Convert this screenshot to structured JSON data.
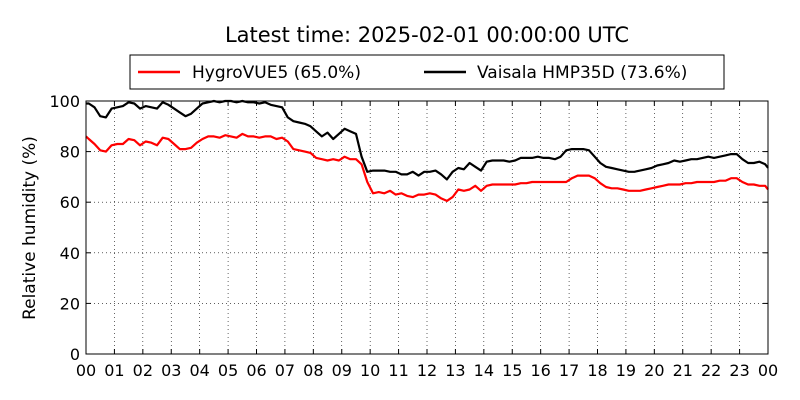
{
  "chart_data": {
    "type": "line",
    "title": "Latest time: 2025-02-01 00:00:00 UTC",
    "xlabel": "",
    "ylabel": "Relative humidity (%)",
    "ylim": [
      0,
      100
    ],
    "xlim": [
      0,
      24
    ],
    "yticks": [
      0,
      20,
      40,
      60,
      80,
      100
    ],
    "xticks": [
      "00",
      "01",
      "02",
      "03",
      "04",
      "05",
      "06",
      "07",
      "08",
      "09",
      "10",
      "11",
      "12",
      "13",
      "14",
      "15",
      "16",
      "17",
      "18",
      "19",
      "20",
      "21",
      "22",
      "23",
      "00"
    ],
    "grid": true,
    "legend": "top-center",
    "series": [
      {
        "name": "HygroVUE5 (65.0%)",
        "color": "#ff0000",
        "x": [
          0,
          0.1,
          0.3,
          0.5,
          0.7,
          0.9,
          1.1,
          1.3,
          1.5,
          1.7,
          1.9,
          2.1,
          2.3,
          2.5,
          2.7,
          2.9,
          3.1,
          3.3,
          3.5,
          3.7,
          3.9,
          4.1,
          4.3,
          4.5,
          4.7,
          4.9,
          5.1,
          5.3,
          5.5,
          5.7,
          5.9,
          6.1,
          6.3,
          6.5,
          6.7,
          6.9,
          7.1,
          7.3,
          7.5,
          7.7,
          7.9,
          8.1,
          8.3,
          8.5,
          8.7,
          8.9,
          9.1,
          9.3,
          9.5,
          9.7,
          9.9,
          10.1,
          10.3,
          10.5,
          10.7,
          10.9,
          11.1,
          11.3,
          11.5,
          11.7,
          11.9,
          12.1,
          12.3,
          12.5,
          12.7,
          12.9,
          13.1,
          13.3,
          13.5,
          13.7,
          13.9,
          14.1,
          14.3,
          14.5,
          14.7,
          14.9,
          15.1,
          15.3,
          15.5,
          15.7,
          15.9,
          16.1,
          16.3,
          16.5,
          16.7,
          16.9,
          17.1,
          17.3,
          17.5,
          17.7,
          17.9,
          18.1,
          18.3,
          18.5,
          18.7,
          18.9,
          19.1,
          19.3,
          19.5,
          19.7,
          19.9,
          20.1,
          20.3,
          20.5,
          20.7,
          20.9,
          21.1,
          21.3,
          21.5,
          21.7,
          21.9,
          22.1,
          22.3,
          22.5,
          22.7,
          22.9,
          23.1,
          23.3,
          23.5,
          23.7,
          23.9,
          24
        ],
        "values": [
          86,
          85,
          83,
          80.5,
          80,
          82.5,
          83,
          83,
          85,
          84.5,
          82.5,
          84,
          83.5,
          82.5,
          85.5,
          85,
          83,
          81,
          81,
          81.5,
          83.5,
          85,
          86,
          86,
          85.5,
          86.5,
          86,
          85.5,
          87,
          86,
          86,
          85.5,
          86,
          86,
          85,
          85.5,
          84,
          81,
          80.5,
          80,
          79.5,
          77.5,
          77,
          76.5,
          77,
          76.5,
          78,
          77,
          77,
          75,
          68,
          63.5,
          64,
          63.5,
          64.5,
          63,
          63.5,
          62.5,
          62,
          63,
          63,
          63.5,
          63,
          61.5,
          60.5,
          62,
          65,
          64.5,
          65,
          66.5,
          64.5,
          66.5,
          67,
          67,
          67,
          67,
          67,
          67.5,
          67.5,
          68,
          68,
          68,
          68,
          68,
          68,
          68,
          69.5,
          70.5,
          70.5,
          70.5,
          69.5,
          67.5,
          66,
          65.5,
          65.5,
          65,
          64.5,
          64.5,
          64.5,
          65,
          65.5,
          66,
          66.5,
          67,
          67,
          67,
          67.5,
          67.5,
          68,
          68,
          68,
          68,
          68.5,
          68.5,
          69.5,
          69.5,
          68,
          67,
          67,
          66.5,
          66.5,
          65
        ]
      },
      {
        "name": "Vaisala HMP35D (73.6%)",
        "color": "#000000",
        "x": [
          0,
          0.1,
          0.3,
          0.5,
          0.7,
          0.9,
          1.1,
          1.3,
          1.5,
          1.7,
          1.9,
          2.1,
          2.3,
          2.5,
          2.7,
          2.9,
          3.1,
          3.3,
          3.5,
          3.7,
          3.9,
          4.1,
          4.3,
          4.5,
          4.7,
          4.9,
          5.1,
          5.3,
          5.5,
          5.7,
          5.9,
          6.1,
          6.3,
          6.5,
          6.7,
          6.9,
          7.1,
          7.3,
          7.5,
          7.7,
          7.9,
          8.1,
          8.3,
          8.5,
          8.7,
          8.9,
          9.1,
          9.3,
          9.5,
          9.7,
          9.9,
          10.1,
          10.3,
          10.5,
          10.7,
          10.9,
          11.1,
          11.3,
          11.5,
          11.7,
          11.9,
          12.1,
          12.3,
          12.5,
          12.7,
          12.9,
          13.1,
          13.3,
          13.5,
          13.7,
          13.9,
          14.1,
          14.3,
          14.5,
          14.7,
          14.9,
          15.1,
          15.3,
          15.5,
          15.7,
          15.9,
          16.1,
          16.3,
          16.5,
          16.7,
          16.9,
          17.1,
          17.3,
          17.5,
          17.7,
          17.9,
          18.1,
          18.3,
          18.5,
          18.7,
          18.9,
          19.1,
          19.3,
          19.5,
          19.7,
          19.9,
          20.1,
          20.3,
          20.5,
          20.7,
          20.9,
          21.1,
          21.3,
          21.5,
          21.7,
          21.9,
          22.1,
          22.3,
          22.5,
          22.7,
          22.9,
          23.1,
          23.3,
          23.5,
          23.7,
          23.9,
          24
        ],
        "values": [
          99,
          99,
          97.5,
          94,
          93.5,
          97,
          97.5,
          98,
          99.5,
          99,
          97,
          98,
          97.5,
          97,
          99.5,
          98.5,
          97,
          95.5,
          94,
          95,
          97,
          99,
          99.5,
          100,
          99.5,
          100,
          100,
          99.5,
          100,
          99.5,
          99.5,
          99,
          99.5,
          98.5,
          98,
          97.5,
          93.5,
          92,
          91.5,
          91,
          90,
          88,
          86,
          87.5,
          85,
          87,
          89,
          88,
          87,
          78,
          72,
          72.5,
          72.5,
          72.5,
          72,
          72,
          71,
          71,
          72,
          70.5,
          72,
          72,
          72.5,
          71,
          69,
          72,
          73.5,
          73,
          75.5,
          74,
          72.5,
          76,
          76.5,
          76.5,
          76.5,
          76,
          76.5,
          77.5,
          77.5,
          77.5,
          78,
          77.5,
          77.5,
          77,
          78,
          80.5,
          81,
          81,
          81,
          80.5,
          78,
          75.5,
          74,
          73.5,
          73,
          72.5,
          72,
          72,
          72.5,
          73,
          73.5,
          74.5,
          75,
          75.5,
          76.5,
          76,
          76.5,
          77,
          77,
          77.5,
          78,
          77.5,
          78,
          78.5,
          79,
          79,
          77,
          75.5,
          75.5,
          76,
          75,
          73.6
        ]
      }
    ]
  }
}
